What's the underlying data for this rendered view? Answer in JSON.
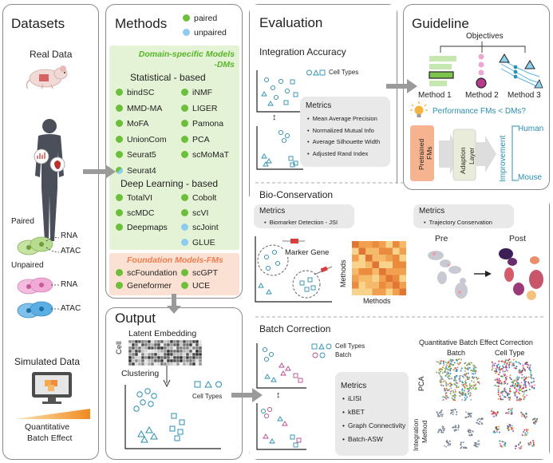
{
  "datasets": {
    "title": "Datasets",
    "real_data": "Real Data",
    "paired": "Paired",
    "unpaired": "Unpaired",
    "rna": "RNA",
    "atac": "ATAC",
    "simulated_data": "Simulated Data",
    "quant_batch_line1": "Quantitative",
    "quant_batch_line2": "Batch Effect"
  },
  "methods": {
    "title": "Methods",
    "legend_paired": "paired",
    "legend_unpaired": "unpaired",
    "dm_title_line1": "Domain-specific Models",
    "dm_title_line2": "-DMs",
    "statistical_header": "Statistical - based",
    "statistical_left": [
      {
        "name": "bindSC",
        "type": "paired"
      },
      {
        "name": "MMD-MA",
        "type": "paired"
      },
      {
        "name": "MoFA",
        "type": "paired"
      },
      {
        "name": "UnionCom",
        "type": "paired"
      },
      {
        "name": "Seurat5",
        "type": "paired"
      },
      {
        "name": "Seurat4",
        "type": "both"
      }
    ],
    "statistical_right": [
      {
        "name": "iNMF",
        "type": "paired"
      },
      {
        "name": "LIGER",
        "type": "paired"
      },
      {
        "name": "Pamona",
        "type": "paired"
      },
      {
        "name": "PCA",
        "type": "paired"
      },
      {
        "name": "scMoMaT",
        "type": "paired"
      }
    ],
    "deep_header": "Deep Learning - based",
    "deep_left": [
      {
        "name": "TotalVI",
        "type": "paired"
      },
      {
        "name": "scMDC",
        "type": "paired"
      },
      {
        "name": "Deepmaps",
        "type": "paired"
      }
    ],
    "deep_right": [
      {
        "name": "Cobolt",
        "type": "paired"
      },
      {
        "name": "scVI",
        "type": "paired"
      },
      {
        "name": "scJoint",
        "type": "unpaired"
      },
      {
        "name": "GLUE",
        "type": "unpaired"
      }
    ],
    "fm_title": "Foundation Models-FMs",
    "fm_left": [
      {
        "name": "scFoundation",
        "type": "paired"
      },
      {
        "name": "Geneformer",
        "type": "paired"
      }
    ],
    "fm_right": [
      {
        "name": "scGPT",
        "type": "paired"
      },
      {
        "name": "UCE",
        "type": "paired"
      }
    ]
  },
  "output": {
    "title": "Output",
    "latent_embedding": "Latent Embedding",
    "cell": "Cell",
    "clustering": "Clustering",
    "cell_types": "Cell Types"
  },
  "evaluation": {
    "title": "Evaluation",
    "integration_accuracy": "Integration Accuracy",
    "cell_types": "Cell Types",
    "metrics_label": "Metrics",
    "ia_metrics": [
      "Mean Average Precision",
      "Normalized Mutual Info",
      "Average Silhouette Width",
      "Adjusted Rand Index"
    ],
    "bio_conservation": "Bio-Conservation",
    "bc_metrics_left": [
      "Biomarker Detection - JSI"
    ],
    "bc_metrics_right": [
      "Trajectory Conservation"
    ],
    "marker_gene": "Marker Gene",
    "methods_axis": "Methods",
    "pre": "Pre",
    "post": "Post",
    "batch_correction": "Batch Correction",
    "legend_cell_types": "Cell Types",
    "legend_batch": "Batch",
    "batch_metrics": [
      "iLISI",
      "kBET",
      "Graph Connectivity",
      "Batch-ASW"
    ],
    "qbec_title": "Quantitative Batch Effect Correction",
    "col_batch": "Batch",
    "col_cell_type": "Cell Type",
    "row_pca": "PCA",
    "row_integration_line1": "Integration",
    "row_integration_line2": "Method"
  },
  "guideline": {
    "title": "Guideline",
    "objectives": "Objectives",
    "method1": "Method 1",
    "method2": "Method 2",
    "method3": "Method 3",
    "performance_question": "Performance FMs < DMs?",
    "pretrained_line1": "Pretrained",
    "pretrained_line2": "FMs",
    "adaption_line1": "Adaption",
    "adaption_line2": "Layer",
    "improvement": "Improvement",
    "human": "Human",
    "mouse": "Mouse"
  },
  "colors": {
    "paired_green": "#6cbf3a",
    "unpaired_blue": "#8fcbef",
    "dm_bg": "#e4f3d5",
    "dm_title": "#57b52a",
    "fm_bg": "#fbe1d4",
    "fm_title": "#ee7e4d",
    "teal": "#2a8fb0",
    "arrow_gray": "#9a9a9a"
  }
}
